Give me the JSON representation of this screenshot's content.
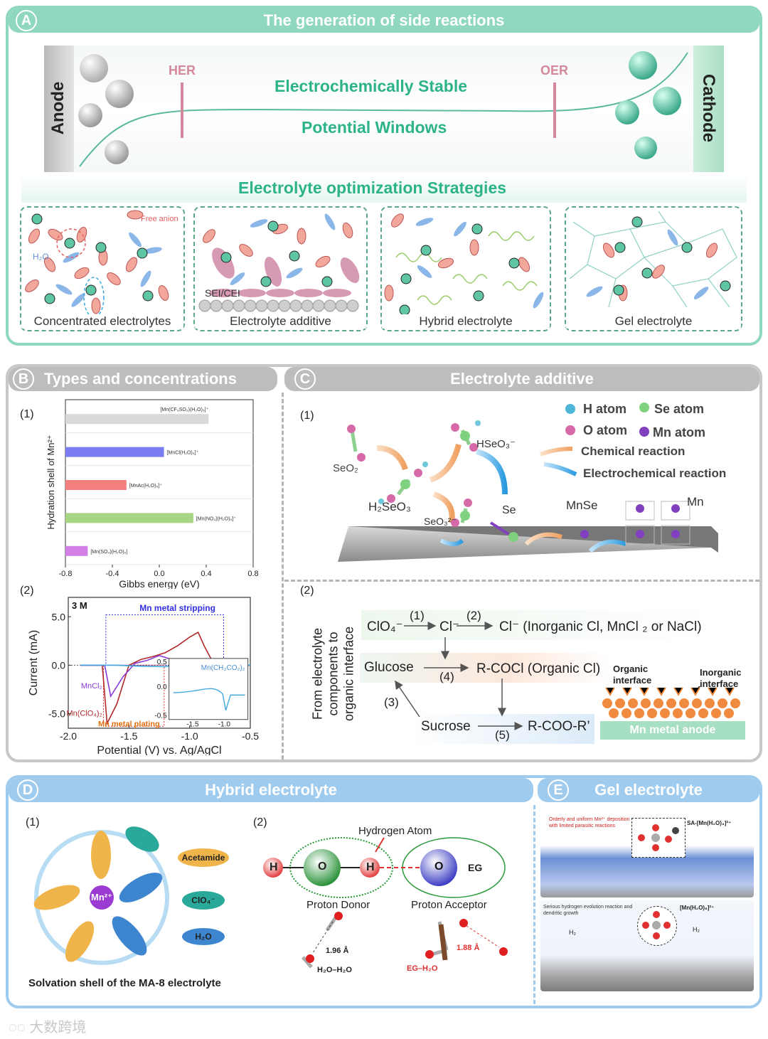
{
  "colors": {
    "panelA_header": "#8fd8bf",
    "panelA_border": "#8fd8bf",
    "gray_header": "#bdbdbd",
    "blue_header": "#9ecbee",
    "green_text": "#2db38a",
    "her_oer": "#d4889b",
    "bar_gray": "#d9d9d9",
    "bar_blue": "#7b7cf0",
    "bar_red": "#f47f7f",
    "bar_green": "#a7d584",
    "bar_purple": "#d37fe8"
  },
  "panelA": {
    "letter": "A",
    "title": "The generation of side reactions",
    "anode": "Anode",
    "cathode": "Cathode",
    "her": "HER",
    "oer": "OER",
    "stable_line1": "Electrochemically Stable",
    "stable_line2": "Potential Windows",
    "strategies_title": "Electrolyte optimization Strategies",
    "strategies": [
      {
        "label": "Concentrated electrolytes",
        "free_anion": "Free anion",
        "water": "H₂O"
      },
      {
        "label": "Electrolyte additive",
        "sei": "SEI/CEI"
      },
      {
        "label": "Hybrid electrolyte"
      },
      {
        "label": "Gel electrolyte"
      }
    ]
  },
  "panelB": {
    "letter": "B",
    "title": "Types and concentrations",
    "sub1": "(1)",
    "sub2": "(2)"
  },
  "panelC": {
    "letter": "C",
    "title": "Electrolyte additive",
    "sub1": "(1)",
    "sub2": "(2)",
    "legend": {
      "h_atom": "H atom",
      "se_atom": "Se atom",
      "o_atom": "O atom",
      "mn_atom": "Mn atom",
      "chemical": "Chemical reaction",
      "electrochemical": "Electrochemical reaction"
    },
    "species": {
      "seo2": "SeO₂",
      "h2seo3": "H₂SeO₃",
      "hseo3": "HSeO₃⁻",
      "seo3": "SeO₃²⁻",
      "se": "Se",
      "mnse": "MnSe",
      "mn": "Mn"
    },
    "flow": {
      "vertical_label_1": "From electrolyte",
      "vertical_label_2": "components to",
      "vertical_label_3": "organic interface",
      "clo4": "ClO₄⁻",
      "step1": "(1)",
      "cl1": "Cl⁻",
      "step2": "(2)",
      "cl2": "Cl⁻ (Inorganic Cl, MnCl ₂ or NaCl)",
      "glucose": "Glucose",
      "step4": "(4)",
      "rcocl": "R-COCl (Organic Cl)",
      "step3": "(3)",
      "sucrose": "Sucrose",
      "step5": "(5)",
      "rcoor": "R-COO-R’",
      "organic_interface": "Organic interface",
      "inorganic_interface": "Inorganic interface",
      "anode": "Mn metal anode"
    }
  },
  "panelD": {
    "letter": "D",
    "title": "Hybrid electrolyte",
    "sub1": "(1)",
    "sub2": "(2)",
    "mn": "Mn²⁺",
    "acetamide": "Acetamide",
    "clo4": "ClO₄⁻",
    "h2o": "H₂O",
    "caption": "Solvation shell of the MA-8 electrolyte",
    "h": "H",
    "o": "O",
    "eg": "EG",
    "hydrogen_atom": "Hydrogen Atom",
    "proton_donor": "Proton Donor",
    "proton_acceptor": "Proton Acceptor",
    "dist1": "1.96 Å",
    "h2o_h2o": "H₂O–H₂O",
    "dist2": "1.88 Å",
    "eg_h2o": "EG–H₂O"
  },
  "panelE": {
    "letter": "E",
    "title": "Gel electrolyte",
    "top_note": "Orderly and uniform Mn²⁺ deposition with limited parasitic reactions",
    "top_label": "SA-[Mn(H₂O)₄]²⁺",
    "bottom_note": "Serious hydrogen evolution reaction and dendritic growth",
    "bottom_label": "[Mn(H₂O)₆]²⁺",
    "h2": "H₂"
  },
  "watermark": "大数跨境",
  "chart_data": [
    {
      "type": "bar",
      "orientation": "horizontal",
      "title": "",
      "xlabel": "Gibbs energy (eV)",
      "ylabel": "Hydration shell of Mn²⁺",
      "categories": [
        "[Mn(CF₃SO₃)(H₂O)₅]⁺",
        "[MnCl(H₂O)₅]⁺",
        "[MnAc(H₂O)₅]⁺",
        "[Mn(NO₃)(H₂O)₅]⁺",
        "[Mn(SO₄)(H₂O)₅]"
      ],
      "values": [
        0.42,
        0.04,
        -0.28,
        0.29,
        -0.61
      ],
      "xlim": [
        -0.8,
        0.8
      ],
      "xticks": [
        "-0.8",
        "-0.4",
        "0.0",
        "0.4",
        "0.8"
      ]
    },
    {
      "type": "line",
      "title": "3 M",
      "xlabel": "Potential (V) vs. Ag/AgCl",
      "ylabel": "Current (mA)",
      "xlim": [
        -2.0,
        -0.5
      ],
      "ylim": [
        -6.5,
        7.0
      ],
      "xticks": [
        "-2.0",
        "-1.5",
        "-1.0",
        "-0.5"
      ],
      "yticks": [
        "5.0",
        "0.0",
        "-5.0"
      ],
      "annotations": [
        "Mn metal stripping",
        "Mn metal plating",
        "MnCl₂",
        "Mn(ClO₄)₂",
        "Mn(CH₃CO₂)₂"
      ],
      "series": [
        {
          "name": "Mn(ClO₄)₂",
          "x": [
            -1.9,
            -1.72,
            -1.68,
            -1.6,
            -1.5,
            -1.4,
            -1.3,
            -1.2,
            -1.1,
            -1.0,
            -0.93,
            -0.88,
            -0.8,
            -0.7,
            -0.5
          ],
          "y": [
            0,
            0,
            -6.0,
            -4.0,
            0,
            0.6,
            0.9,
            1.3,
            2.0,
            2.9,
            3.4,
            2.0,
            0.1,
            0,
            0
          ]
        },
        {
          "name": "MnCl₂",
          "x": [
            -1.9,
            -1.7,
            -1.65,
            -1.55,
            -1.45,
            -1.35,
            -1.25,
            -1.15,
            -1.05,
            -0.95,
            -0.85,
            -0.5
          ],
          "y": [
            0,
            0,
            -3.2,
            -1.2,
            0.2,
            0.5,
            1.0,
            0.6,
            0.3,
            0.1,
            0,
            0
          ]
        },
        {
          "name": "Mn(CH₃CO₂)₂",
          "x": [
            -1.9,
            -1.6,
            -1.4,
            -1.2,
            -1.0,
            -0.8,
            -0.5
          ],
          "y": [
            0,
            0,
            -0.1,
            -0.15,
            0.2,
            0.05,
            0
          ]
        }
      ]
    }
  ]
}
